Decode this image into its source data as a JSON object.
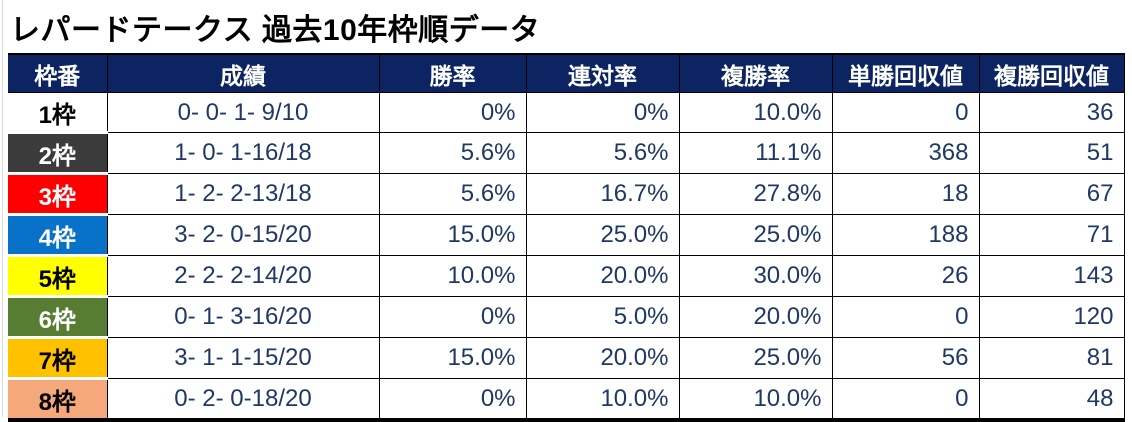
{
  "title": "レパードテークス 過去10年枠順データ",
  "colors": {
    "header_bg": "#0d2462",
    "data_text": "#1f3864",
    "grid_line": "#000000"
  },
  "table": {
    "headers": {
      "waku": "枠番",
      "seiseki": "成績",
      "win_rate": "勝率",
      "quinella_rate": "連対率",
      "show_rate": "複勝率",
      "win_return": "単勝回収値",
      "show_return": "複勝回収値"
    },
    "rows": [
      {
        "waku": "1枠",
        "bg": "#ffffff",
        "fg": "#000000",
        "seiseki": "0- 0- 1- 9/10",
        "win": "0%",
        "ren": "0%",
        "fuku": "10.0%",
        "tan_ret": "0",
        "fuku_ret": "36"
      },
      {
        "waku": "2枠",
        "bg": "#3b3b3b",
        "fg": "#ffffff",
        "seiseki": "1- 0- 1-16/18",
        "win": "5.6%",
        "ren": "5.6%",
        "fuku": "11.1%",
        "tan_ret": "368",
        "fuku_ret": "51"
      },
      {
        "waku": "3枠",
        "bg": "#ff0000",
        "fg": "#ffffff",
        "seiseki": "1- 2- 2-13/18",
        "win": "5.6%",
        "ren": "16.7%",
        "fuku": "27.8%",
        "tan_ret": "18",
        "fuku_ret": "67"
      },
      {
        "waku": "4枠",
        "bg": "#0871c8",
        "fg": "#ffffff",
        "seiseki": "3- 2- 0-15/20",
        "win": "15.0%",
        "ren": "25.0%",
        "fuku": "25.0%",
        "tan_ret": "188",
        "fuku_ret": "71"
      },
      {
        "waku": "5枠",
        "bg": "#ffff00",
        "fg": "#000000",
        "seiseki": "2- 2- 2-14/20",
        "win": "10.0%",
        "ren": "20.0%",
        "fuku": "30.0%",
        "tan_ret": "26",
        "fuku_ret": "143"
      },
      {
        "waku": "6枠",
        "bg": "#567d32",
        "fg": "#ffffff",
        "seiseki": "0- 1- 3-16/20",
        "win": "0%",
        "ren": "5.0%",
        "fuku": "20.0%",
        "tan_ret": "0",
        "fuku_ret": "120"
      },
      {
        "waku": "7枠",
        "bg": "#ffc000",
        "fg": "#000000",
        "seiseki": "3- 1- 1-15/20",
        "win": "15.0%",
        "ren": "20.0%",
        "fuku": "25.0%",
        "tan_ret": "56",
        "fuku_ret": "81"
      },
      {
        "waku": "8枠",
        "bg": "#f4a87c",
        "fg": "#000000",
        "seiseki": "0- 2- 0-18/20",
        "win": "0%",
        "ren": "10.0%",
        "fuku": "10.0%",
        "tan_ret": "0",
        "fuku_ret": "48"
      }
    ]
  }
}
